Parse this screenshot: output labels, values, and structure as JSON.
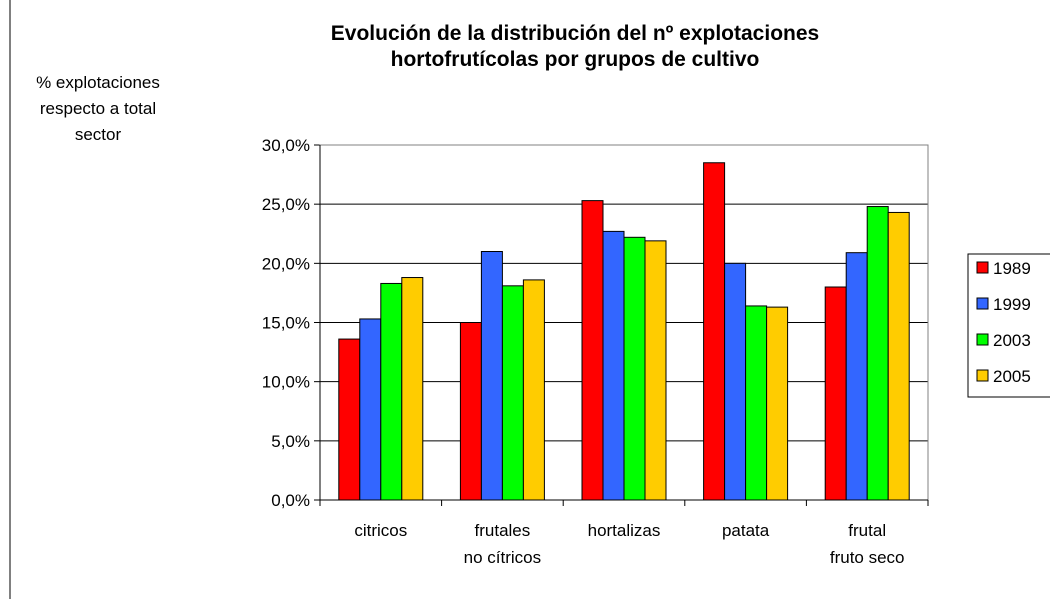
{
  "chart_data": {
    "type": "bar",
    "title": "Evolución de la distribución del nº explotaciones\nhortofrutícolas por grupos de cultivo",
    "y_label": "% explotaciones\nrespecto a total\nsector",
    "categories": [
      "citricos",
      "frutales\nno cítricos",
      "hortalizas",
      "patata",
      "frutal\nfruto seco"
    ],
    "series": [
      {
        "name": "1989",
        "color": "#ff0000",
        "values": [
          13.6,
          15.0,
          25.3,
          28.5,
          18.0
        ]
      },
      {
        "name": "1999",
        "color": "#3366ff",
        "values": [
          15.3,
          21.0,
          22.7,
          20.0,
          20.9
        ]
      },
      {
        "name": "2003",
        "color": "#00ff00",
        "values": [
          18.3,
          18.1,
          22.2,
          16.4,
          24.8
        ]
      },
      {
        "name": "2005",
        "color": "#ffcc00",
        "values": [
          18.8,
          18.6,
          21.9,
          16.3,
          24.3
        ]
      }
    ],
    "ylim": [
      0,
      30
    ],
    "yticks": [
      {
        "value": 0,
        "label": "0,0%"
      },
      {
        "value": 5,
        "label": "5,0%"
      },
      {
        "value": 10,
        "label": "10,0%"
      },
      {
        "value": 15,
        "label": "15,0%"
      },
      {
        "value": 20,
        "label": "20,0%"
      },
      {
        "value": 25,
        "label": "25,0%"
      },
      {
        "value": 30,
        "label": "30,0%"
      }
    ],
    "grid": true,
    "legend": "right"
  }
}
